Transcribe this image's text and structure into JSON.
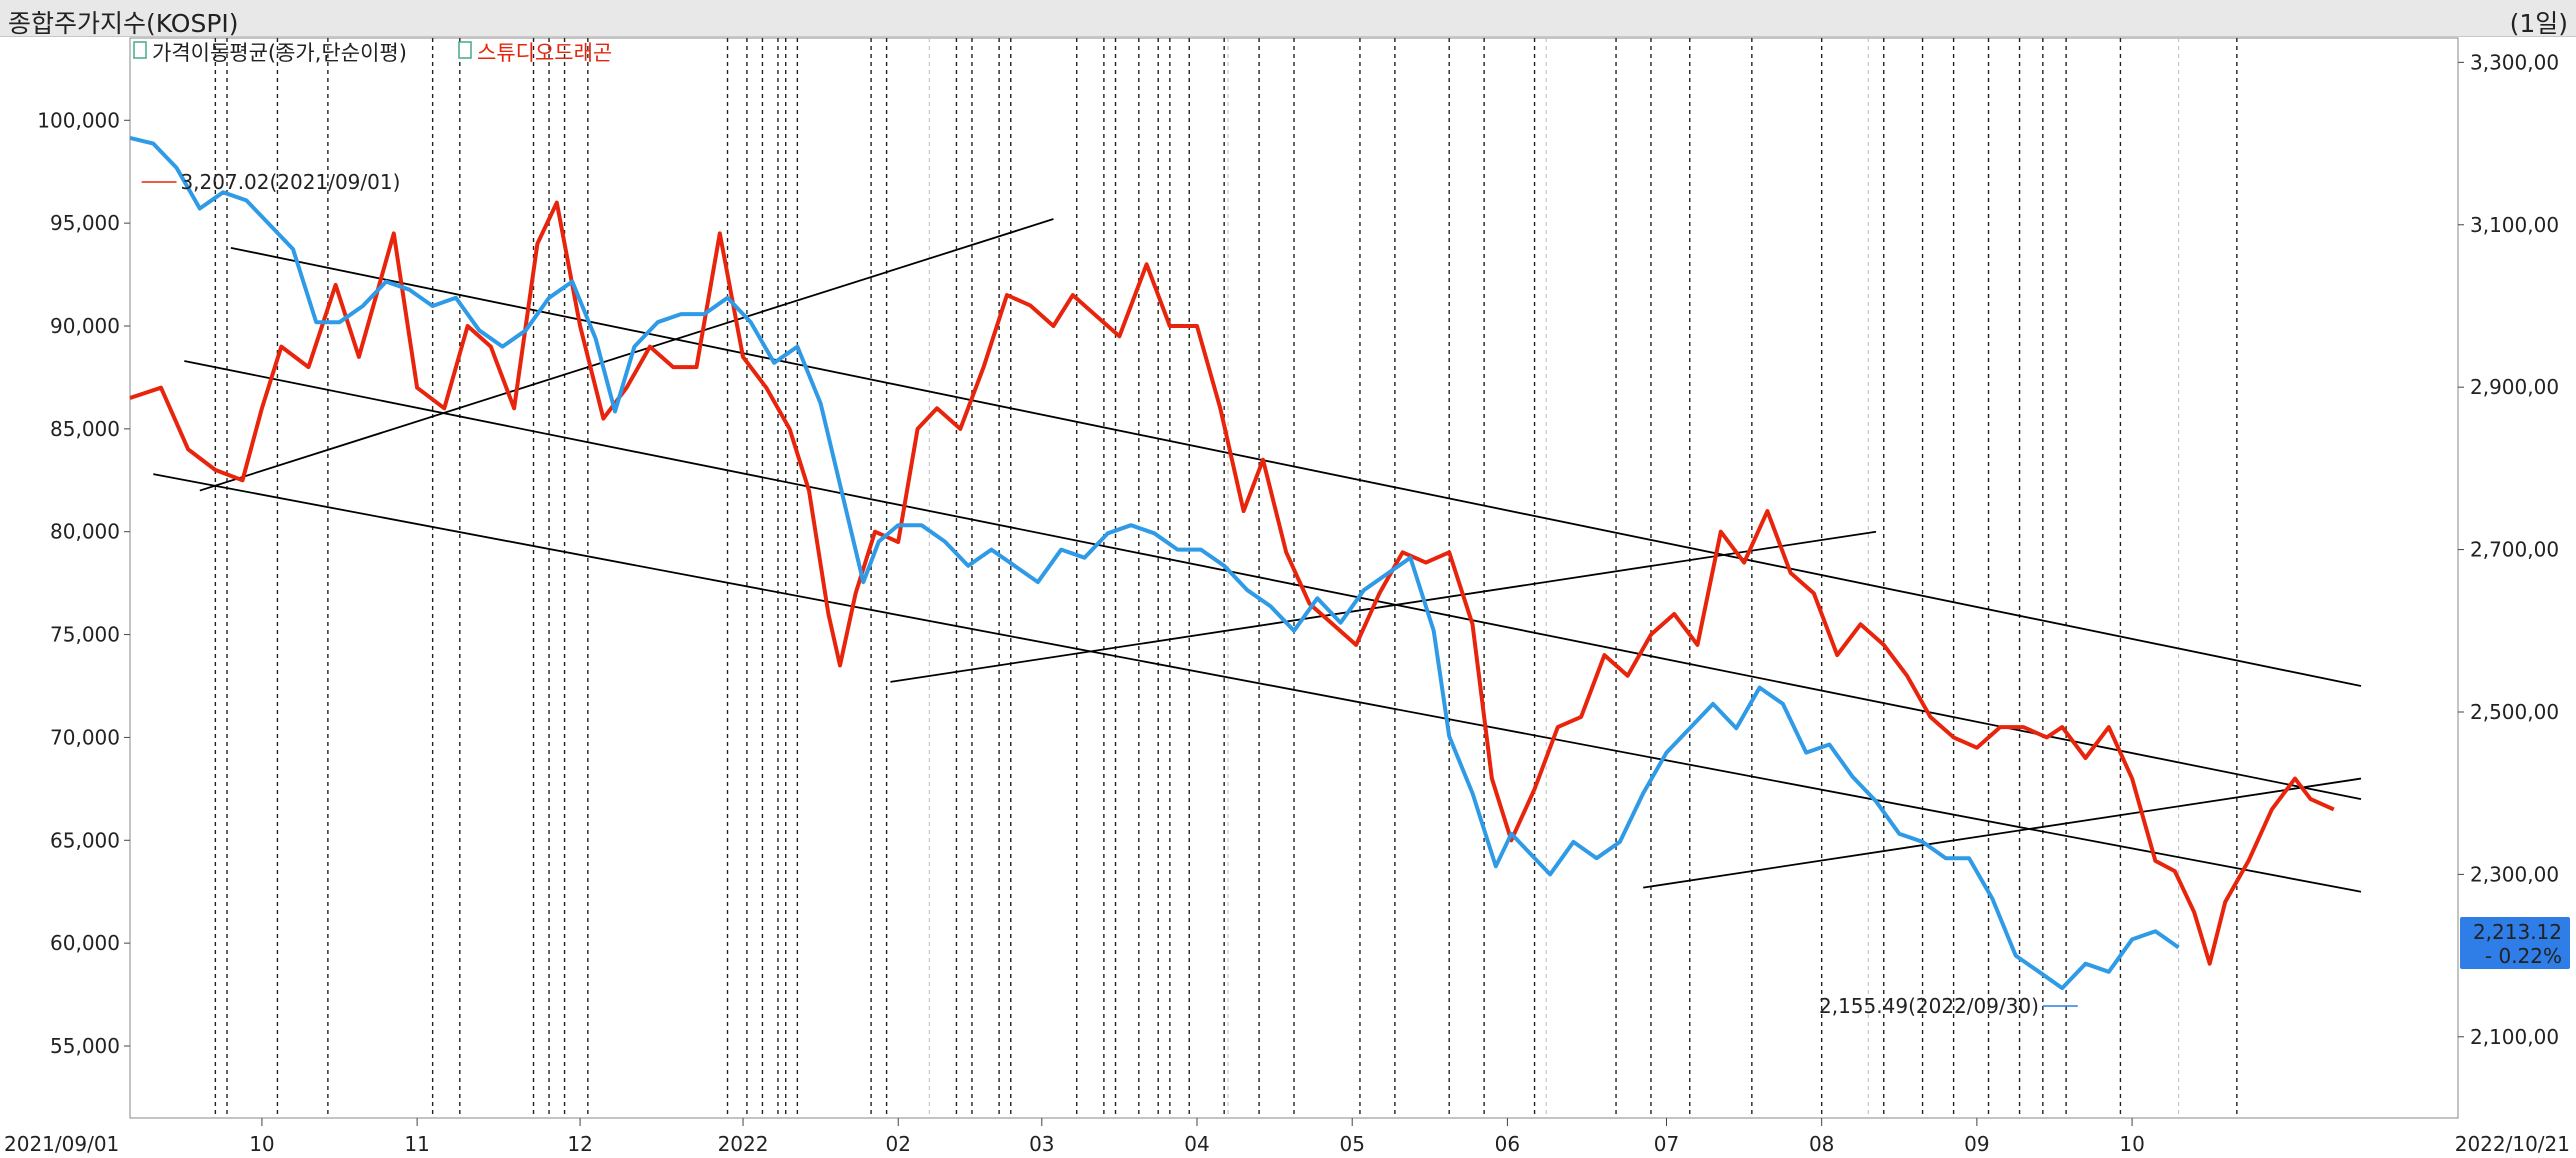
{
  "window": {
    "title": "종합주가지수(KOSPI)",
    "period": "(1일)"
  },
  "legend": [
    {
      "label": "가격이동평균(종가,단순이평)",
      "color": "#222222",
      "icon": "checkbox-icon"
    },
    {
      "label": "스튜디오드래곤",
      "color": "#e8250c",
      "icon": "checkbox-icon"
    }
  ],
  "colors": {
    "stock": "#e8250c",
    "kospi": "#2f9be6",
    "trend": "#000000",
    "badge": "#2f7de6"
  },
  "chart_data": {
    "type": "line",
    "x_range": [
      "2021/09/01",
      "2022/10/21"
    ],
    "x_ticks": [
      "2021/09/01",
      "10",
      "11",
      "12",
      "2022",
      "02",
      "03",
      "04",
      "05",
      "06",
      "07",
      "08",
      "09",
      "10",
      "2022/10/21"
    ],
    "y_left": {
      "ticks": [
        "100,000",
        "95,000",
        "90,000",
        "85,000",
        "80,000",
        "75,000",
        "70,000",
        "65,000",
        "60,000",
        "55,000"
      ],
      "range": [
        51500,
        104000
      ]
    },
    "y_right": {
      "ticks": [
        "3,300,00",
        "3,100,00",
        "2,900,00",
        "2,700,00",
        "2,500,00",
        "2,300,00",
        "2,100,00"
      ],
      "range": [
        2000,
        3330
      ]
    },
    "series": [
      {
        "name": "스튜디오드래곤",
        "axis": "left",
        "color": "#e8250c",
        "points": [
          [
            0,
            86500
          ],
          [
            0.8,
            87000
          ],
          [
            1.5,
            84000
          ],
          [
            2.2,
            83000
          ],
          [
            2.9,
            82500
          ],
          [
            3.4,
            86000
          ],
          [
            3.9,
            89000
          ],
          [
            4.6,
            88000
          ],
          [
            5.3,
            92000
          ],
          [
            5.9,
            88500
          ],
          [
            6.8,
            94500
          ],
          [
            7.4,
            87000
          ],
          [
            8.1,
            86000
          ],
          [
            8.7,
            90000
          ],
          [
            9.3,
            89000
          ],
          [
            9.9,
            86000
          ],
          [
            10.5,
            94000
          ],
          [
            11.0,
            96000
          ],
          [
            11.6,
            90000
          ],
          [
            12.2,
            85500
          ],
          [
            12.8,
            87000
          ],
          [
            13.4,
            89000
          ],
          [
            14.0,
            88000
          ],
          [
            14.6,
            88000
          ],
          [
            15.2,
            94500
          ],
          [
            15.8,
            88500
          ],
          [
            16.4,
            87000
          ],
          [
            17.0,
            85000
          ],
          [
            17.5,
            82000
          ],
          [
            18.0,
            76000
          ],
          [
            18.3,
            73500
          ],
          [
            18.7,
            77000
          ],
          [
            19.2,
            80000
          ],
          [
            19.8,
            79500
          ],
          [
            20.3,
            85000
          ],
          [
            20.8,
            86000
          ],
          [
            21.4,
            85000
          ],
          [
            22.0,
            88000
          ],
          [
            22.6,
            91500
          ],
          [
            23.2,
            91000
          ],
          [
            23.8,
            90000
          ],
          [
            24.3,
            91500
          ],
          [
            24.9,
            90500
          ],
          [
            25.5,
            89500
          ],
          [
            26.2,
            93000
          ],
          [
            26.8,
            90000
          ],
          [
            27.5,
            90000
          ],
          [
            28.1,
            86000
          ],
          [
            28.7,
            81000
          ],
          [
            29.2,
            83500
          ],
          [
            29.8,
            79000
          ],
          [
            30.4,
            76500
          ],
          [
            31.0,
            75500
          ],
          [
            31.6,
            74500
          ],
          [
            32.2,
            77000
          ],
          [
            32.8,
            79000
          ],
          [
            33.4,
            78500
          ],
          [
            34.0,
            79000
          ],
          [
            34.6,
            75500
          ],
          [
            35.1,
            68000
          ],
          [
            35.6,
            65000
          ],
          [
            36.2,
            67500
          ],
          [
            36.8,
            70500
          ],
          [
            37.4,
            71000
          ],
          [
            38.0,
            74000
          ],
          [
            38.6,
            73000
          ],
          [
            39.2,
            75000
          ],
          [
            39.8,
            76000
          ],
          [
            40.4,
            74500
          ],
          [
            41.0,
            80000
          ],
          [
            41.6,
            78500
          ],
          [
            42.2,
            81000
          ],
          [
            42.8,
            78000
          ],
          [
            43.4,
            77000
          ],
          [
            44.0,
            74000
          ],
          [
            44.6,
            75500
          ],
          [
            45.2,
            74500
          ],
          [
            45.8,
            73000
          ],
          [
            46.4,
            71000
          ],
          [
            47.0,
            70000
          ],
          [
            47.6,
            69500
          ],
          [
            48.2,
            70500
          ],
          [
            48.8,
            70500
          ],
          [
            49.4,
            70000
          ],
          [
            49.8,
            70500
          ],
          [
            50.4,
            69000
          ],
          [
            51.0,
            70500
          ],
          [
            51.6,
            68000
          ],
          [
            52.2,
            64000
          ],
          [
            52.7,
            63500
          ],
          [
            53.2,
            61500
          ],
          [
            53.6,
            59000
          ],
          [
            54.0,
            62000
          ],
          [
            54.6,
            64000
          ],
          [
            55.2,
            66500
          ],
          [
            55.8,
            68000
          ],
          [
            56.2,
            67000
          ],
          [
            56.8,
            66500
          ]
        ]
      },
      {
        "name": "KOSPI",
        "axis": "right",
        "color": "#2f9be6",
        "points": [
          [
            0,
            3207
          ],
          [
            0.6,
            3200
          ],
          [
            1.2,
            3170
          ],
          [
            1.8,
            3120
          ],
          [
            2.4,
            3140
          ],
          [
            3.0,
            3130
          ],
          [
            3.6,
            3100
          ],
          [
            4.2,
            3070
          ],
          [
            4.8,
            2980
          ],
          [
            5.4,
            2980
          ],
          [
            6.0,
            3000
          ],
          [
            6.6,
            3030
          ],
          [
            7.2,
            3020
          ],
          [
            7.8,
            3000
          ],
          [
            8.4,
            3010
          ],
          [
            9.0,
            2970
          ],
          [
            9.6,
            2950
          ],
          [
            10.2,
            2970
          ],
          [
            10.8,
            3010
          ],
          [
            11.4,
            3030
          ],
          [
            12.0,
            2960
          ],
          [
            12.5,
            2870
          ],
          [
            13.0,
            2950
          ],
          [
            13.6,
            2980
          ],
          [
            14.2,
            2990
          ],
          [
            14.8,
            2990
          ],
          [
            15.4,
            3010
          ],
          [
            16.0,
            2980
          ],
          [
            16.6,
            2930
          ],
          [
            17.2,
            2950
          ],
          [
            17.8,
            2880
          ],
          [
            18.4,
            2760
          ],
          [
            18.9,
            2660
          ],
          [
            19.3,
            2710
          ],
          [
            19.8,
            2730
          ],
          [
            20.4,
            2730
          ],
          [
            21.0,
            2710
          ],
          [
            21.6,
            2680
          ],
          [
            22.2,
            2700
          ],
          [
            22.8,
            2680
          ],
          [
            23.4,
            2660
          ],
          [
            24.0,
            2700
          ],
          [
            24.6,
            2690
          ],
          [
            25.2,
            2720
          ],
          [
            25.8,
            2730
          ],
          [
            26.4,
            2720
          ],
          [
            27.0,
            2700
          ],
          [
            27.6,
            2700
          ],
          [
            28.2,
            2680
          ],
          [
            28.8,
            2650
          ],
          [
            29.4,
            2630
          ],
          [
            30.0,
            2600
          ],
          [
            30.6,
            2640
          ],
          [
            31.2,
            2610
          ],
          [
            31.8,
            2650
          ],
          [
            32.4,
            2670
          ],
          [
            33.0,
            2690
          ],
          [
            33.6,
            2600
          ],
          [
            34.0,
            2470
          ],
          [
            34.6,
            2400
          ],
          [
            35.2,
            2310
          ],
          [
            35.6,
            2350
          ],
          [
            36.0,
            2330
          ],
          [
            36.6,
            2300
          ],
          [
            37.2,
            2340
          ],
          [
            37.8,
            2320
          ],
          [
            38.4,
            2340
          ],
          [
            39.0,
            2400
          ],
          [
            39.6,
            2450
          ],
          [
            40.2,
            2480
          ],
          [
            40.8,
            2510
          ],
          [
            41.4,
            2480
          ],
          [
            42.0,
            2530
          ],
          [
            42.6,
            2510
          ],
          [
            43.2,
            2450
          ],
          [
            43.8,
            2460
          ],
          [
            44.4,
            2420
          ],
          [
            45.0,
            2390
          ],
          [
            45.6,
            2350
          ],
          [
            46.2,
            2340
          ],
          [
            46.8,
            2320
          ],
          [
            47.4,
            2320
          ],
          [
            48.0,
            2270
          ],
          [
            48.6,
            2200
          ],
          [
            49.2,
            2180
          ],
          [
            49.8,
            2160
          ],
          [
            50.4,
            2190
          ],
          [
            51.0,
            2180
          ],
          [
            51.6,
            2220
          ],
          [
            52.2,
            2230
          ],
          [
            52.8,
            2210
          ]
        ]
      }
    ],
    "annotations": [
      {
        "text": "3,207.02(2021/09/01)",
        "color": "#e8250c",
        "series": "스튜디오드래곤"
      },
      {
        "text": "2,155.49(2022/09/30)",
        "color": "#2f7de6",
        "series": "KOSPI"
      }
    ],
    "last_value": {
      "value": "2,213.12",
      "change": "- 0.22%"
    },
    "grid": false,
    "legend_position": "top-left"
  }
}
